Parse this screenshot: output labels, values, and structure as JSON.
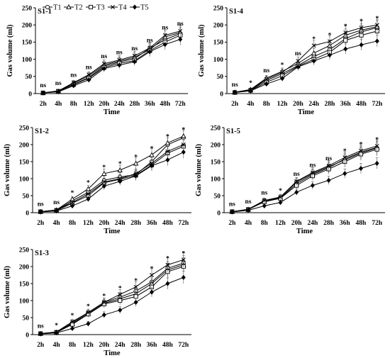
{
  "legend": [
    "T1",
    "T2",
    "T3",
    "T4",
    "T5"
  ],
  "chart_data": [
    {
      "type": "line",
      "title": "S1-1",
      "xlabel": "Time",
      "ylabel": "Gas volume (ml)",
      "categories": [
        "2h",
        "4h",
        "8h",
        "12h",
        "20h",
        "24h",
        "28h",
        "36h",
        "48h",
        "72h"
      ],
      "ylim": [
        0,
        250
      ],
      "yticks": [
        0,
        50,
        100,
        150,
        200,
        250
      ],
      "significance": [
        "ns",
        "ns",
        "ns",
        "ns",
        "ns",
        "ns",
        "ns",
        "ns",
        "ns",
        "ns"
      ],
      "series": [
        {
          "name": "T1",
          "values": [
            2,
            6,
            27,
            47,
            80,
            92,
            102,
            132,
            157,
            175
          ]
        },
        {
          "name": "T2",
          "values": [
            2,
            7,
            30,
            52,
            83,
            95,
            106,
            128,
            165,
            178
          ]
        },
        {
          "name": "T3",
          "values": [
            2,
            6,
            26,
            45,
            76,
            88,
            96,
            125,
            150,
            170
          ]
        },
        {
          "name": "T4",
          "values": [
            2,
            8,
            32,
            55,
            87,
            98,
            110,
            133,
            170,
            182
          ]
        },
        {
          "name": "T5",
          "values": [
            2,
            5,
            23,
            40,
            73,
            83,
            93,
            122,
            143,
            158
          ]
        }
      ]
    },
    {
      "type": "line",
      "title": "S1-4",
      "xlabel": "Time",
      "ylabel": "Gas volume (ml)",
      "categories": [
        "2h",
        "4h",
        "8h",
        "12h",
        "20h",
        "24h",
        "28h",
        "36h",
        "48h",
        "72h"
      ],
      "ylim": [
        0,
        250
      ],
      "yticks": [
        0,
        50,
        100,
        150,
        200,
        250
      ],
      "significance": [
        "ns",
        "*",
        "ns",
        "*",
        "ns",
        "*",
        "*",
        "*",
        "*",
        "*"
      ],
      "series": [
        {
          "name": "T1",
          "values": [
            4,
            10,
            38,
            58,
            82,
            108,
            128,
            160,
            180,
            192
          ]
        },
        {
          "name": "T2",
          "values": [
            4,
            12,
            45,
            65,
            88,
            118,
            140,
            170,
            185,
            195
          ]
        },
        {
          "name": "T3",
          "values": [
            3,
            9,
            33,
            52,
            80,
            100,
            120,
            155,
            170,
            182
          ]
        },
        {
          "name": "T4",
          "values": [
            4,
            11,
            42,
            62,
            95,
            140,
            152,
            178,
            192,
            200
          ]
        },
        {
          "name": "T5",
          "values": [
            3,
            8,
            28,
            44,
            78,
            95,
            112,
            130,
            142,
            153
          ]
        }
      ]
    },
    {
      "type": "line",
      "title": "S1-2",
      "xlabel": "Time",
      "ylabel": "Gas volume (ml)",
      "categories": [
        "2h",
        "4h",
        "8h",
        "12h",
        "20h",
        "24h",
        "28h",
        "36h",
        "48h",
        "72h"
      ],
      "ylim": [
        0,
        250
      ],
      "yticks": [
        0,
        50,
        100,
        150,
        200,
        250
      ],
      "significance": [
        "ns",
        "ns",
        "*",
        "*",
        "*",
        "*",
        "*",
        "*",
        "*",
        "*"
      ],
      "series": [
        {
          "name": "T1",
          "values": [
            3,
            7,
            35,
            60,
            95,
            105,
            112,
            150,
            200,
            220
          ]
        },
        {
          "name": "T2",
          "values": [
            3,
            8,
            40,
            70,
            115,
            125,
            145,
            170,
            205,
            225
          ]
        },
        {
          "name": "T3",
          "values": [
            3,
            6,
            28,
            50,
            88,
            98,
            110,
            140,
            175,
            195
          ]
        },
        {
          "name": "T4",
          "values": [
            3,
            8,
            30,
            55,
            90,
            100,
            115,
            145,
            180,
            200
          ]
        },
        {
          "name": "T5",
          "values": [
            2,
            5,
            20,
            40,
            78,
            92,
            108,
            138,
            155,
            178
          ]
        }
      ]
    },
    {
      "type": "line",
      "title": "S1-5",
      "xlabel": "Time",
      "ylabel": "Gas volume (ml)",
      "categories": [
        "2h",
        "4h",
        "8h",
        "12h",
        "20h",
        "24h",
        "28h",
        "36h",
        "48h",
        "72h"
      ],
      "ylim": [
        0,
        250
      ],
      "yticks": [
        0,
        50,
        100,
        150,
        200,
        250
      ],
      "significance": [
        "ns",
        "ns",
        "ns",
        "*",
        "ns",
        "ns",
        "ns",
        "*",
        "*",
        "*"
      ],
      "series": [
        {
          "name": "T1",
          "values": [
            3,
            10,
            35,
            45,
            90,
            115,
            135,
            155,
            175,
            190
          ]
        },
        {
          "name": "T2",
          "values": [
            3,
            9,
            33,
            43,
            85,
            112,
            132,
            158,
            178,
            192
          ]
        },
        {
          "name": "T3",
          "values": [
            3,
            9,
            32,
            42,
            80,
            108,
            128,
            150,
            172,
            186
          ]
        },
        {
          "name": "T4",
          "values": [
            3,
            10,
            36,
            46,
            92,
            118,
            138,
            162,
            182,
            196
          ]
        },
        {
          "name": "T5",
          "values": [
            2,
            7,
            20,
            30,
            60,
            80,
            95,
            115,
            130,
            145
          ]
        }
      ]
    },
    {
      "type": "line",
      "title": "S1-3",
      "xlabel": "Time",
      "ylabel": "Gas volume (ml)",
      "categories": [
        "2h",
        "4h",
        "8h",
        "12h",
        "20h",
        "24h",
        "28h",
        "36h",
        "48h",
        "72h"
      ],
      "ylim": [
        0,
        250
      ],
      "yticks": [
        0,
        50,
        100,
        150,
        200,
        250
      ],
      "significance": [
        "ns",
        "*",
        "*",
        "*",
        "*",
        "*",
        "*",
        "*",
        "*",
        "*"
      ],
      "series": [
        {
          "name": "T1",
          "values": [
            3,
            7,
            35,
            65,
            95,
            110,
            128,
            155,
            195,
            210
          ]
        },
        {
          "name": "T2",
          "values": [
            3,
            7,
            32,
            62,
            92,
            105,
            120,
            150,
            190,
            205
          ]
        },
        {
          "name": "T3",
          "values": [
            3,
            6,
            30,
            60,
            90,
            100,
            112,
            140,
            185,
            200
          ]
        },
        {
          "name": "T4",
          "values": [
            3,
            8,
            38,
            65,
            95,
            118,
            140,
            175,
            205,
            220
          ]
        },
        {
          "name": "T5",
          "values": [
            2,
            5,
            18,
            32,
            58,
            72,
            95,
            125,
            150,
            168
          ]
        }
      ]
    }
  ]
}
